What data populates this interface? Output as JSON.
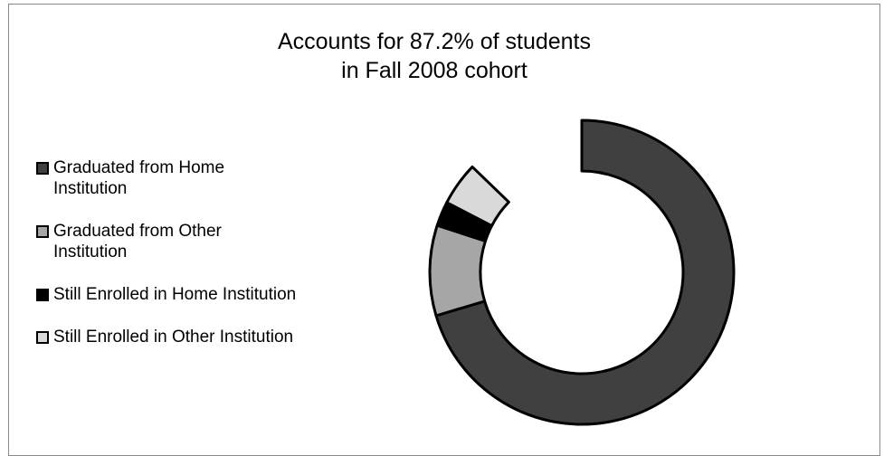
{
  "chart_data": {
    "type": "pie",
    "variant": "donut",
    "title": "Accounts for 87.2% of students\nin Fall 2008 cohort",
    "title_lines": [
      "Accounts for 87.2% of students",
      "in Fall 2008 cohort"
    ],
    "series": [
      {
        "name": "Graduated from Home Institution",
        "value": 70.4,
        "color": "#404040"
      },
      {
        "name": "Graduated from Other Institution",
        "value": 9.6,
        "color": "#a6a6a6"
      },
      {
        "name": "Still Enrolled in Home Institution",
        "value": 2.6,
        "color": "#000000"
      },
      {
        "name": "Still Enrolled in Other Institution",
        "value": 4.6,
        "color": "#d9d9d9"
      }
    ],
    "total_shown_percent": 87.2,
    "legend_position": "left",
    "legend": [
      "Graduated from Home Institution",
      "Graduated from Other Institution",
      "Still Enrolled in Home Institution",
      "Still Enrolled in Other Institution"
    ]
  }
}
